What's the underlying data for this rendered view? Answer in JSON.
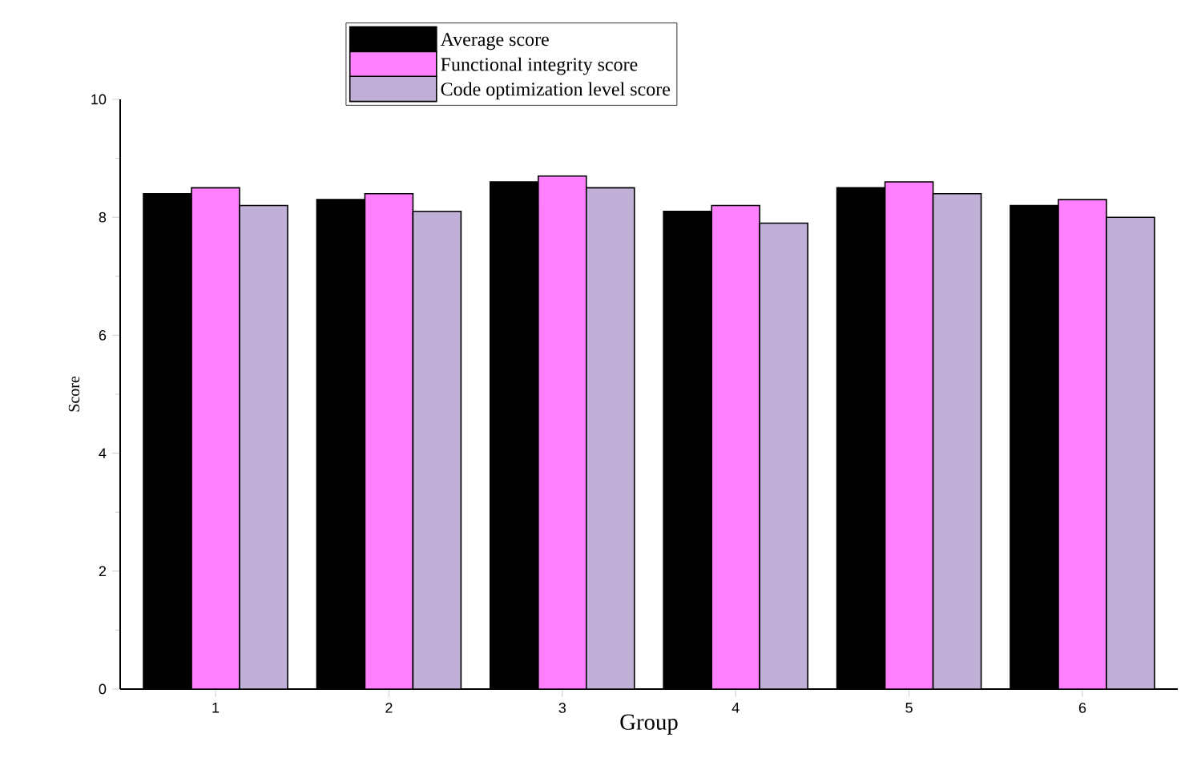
{
  "chart_data": {
    "type": "bar",
    "xlabel": "Group",
    "ylabel": "Score",
    "categories": [
      "1",
      "2",
      "3",
      "4",
      "5",
      "6"
    ],
    "series": [
      {
        "name": "Average score",
        "color": "#000000",
        "values": [
          8.4,
          8.3,
          8.6,
          8.1,
          8.5,
          8.2
        ]
      },
      {
        "name": "Functional integrity score",
        "color": "#ff80ff",
        "values": [
          8.5,
          8.4,
          8.7,
          8.2,
          8.6,
          8.3
        ]
      },
      {
        "name": "Code optimization level score",
        "color": "#c0b0d8",
        "values": [
          8.2,
          8.1,
          8.5,
          7.9,
          8.4,
          8.0
        ]
      }
    ],
    "ylim": [
      0,
      10
    ],
    "yticks": [
      0,
      2,
      4,
      6,
      8,
      10
    ],
    "grid": false,
    "legend": "top"
  }
}
